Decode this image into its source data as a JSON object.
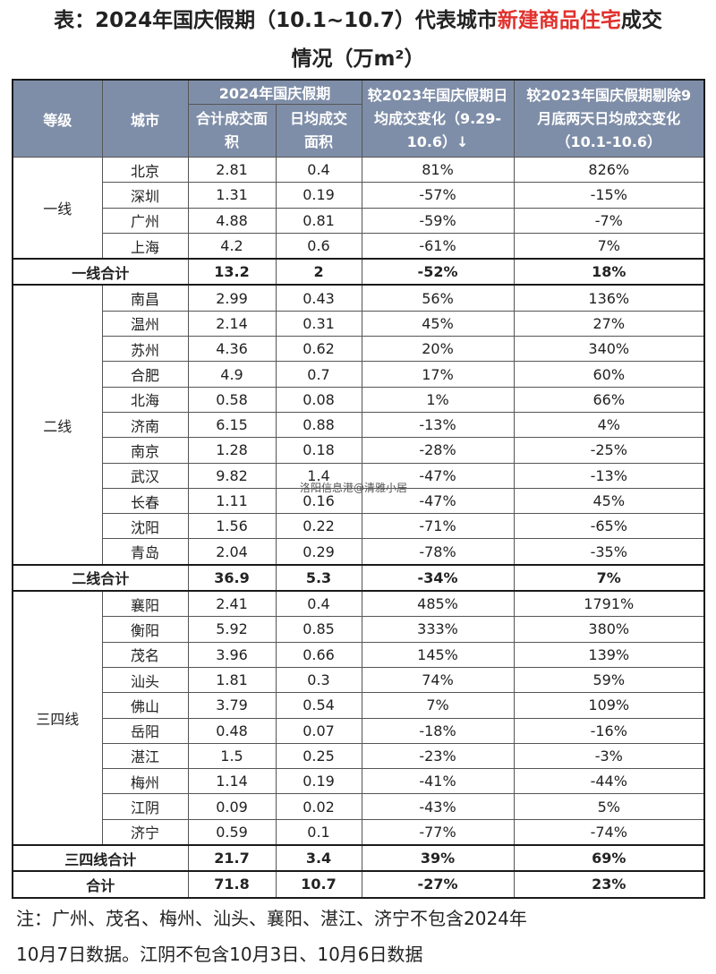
{
  "title": {
    "prefix": "表：2024年国庆假期（10.1~10.7）代表城市",
    "highlight": "新建商品住宅",
    "suffix": "成交",
    "line2": "情况（万m²）"
  },
  "header": {
    "tier": "等级",
    "city": "城市",
    "group": "2024年国庆假期",
    "total_area": "合计成交面积",
    "daily_area": "日均成交面积",
    "vs2023": "较2023年国庆假期日均成交变化（9.29-10.6）↓",
    "vs_sep": "较2023年国庆假期剔除9月底两天日均成交变化（10.1-10.6）"
  },
  "groups": [
    {
      "tier": "一线",
      "rows": [
        {
          "city": "北京",
          "total": "2.81",
          "daily": "0.4",
          "chg": "81%",
          "chg2": "826%"
        },
        {
          "city": "深圳",
          "total": "1.31",
          "daily": "0.19",
          "chg": "-57%",
          "chg2": "-15%"
        },
        {
          "city": "广州",
          "total": "4.88",
          "daily": "0.81",
          "chg": "-59%",
          "chg2": "-7%"
        },
        {
          "city": "上海",
          "total": "4.2",
          "daily": "0.6",
          "chg": "-61%",
          "chg2": "7%"
        }
      ],
      "subtotal": {
        "label": "一线合计",
        "total": "13.2",
        "daily": "2",
        "chg": "-52%",
        "chg2": "18%"
      }
    },
    {
      "tier": "二线",
      "rows": [
        {
          "city": "南昌",
          "total": "2.99",
          "daily": "0.43",
          "chg": "56%",
          "chg2": "136%"
        },
        {
          "city": "温州",
          "total": "2.14",
          "daily": "0.31",
          "chg": "45%",
          "chg2": "27%"
        },
        {
          "city": "苏州",
          "total": "4.36",
          "daily": "0.62",
          "chg": "20%",
          "chg2": "340%"
        },
        {
          "city": "合肥",
          "total": "4.9",
          "daily": "0.7",
          "chg": "17%",
          "chg2": "60%"
        },
        {
          "city": "北海",
          "total": "0.58",
          "daily": "0.08",
          "chg": "1%",
          "chg2": "66%"
        },
        {
          "city": "济南",
          "total": "6.15",
          "daily": "0.88",
          "chg": "-13%",
          "chg2": "4%"
        },
        {
          "city": "南京",
          "total": "1.28",
          "daily": "0.18",
          "chg": "-28%",
          "chg2": "-25%"
        },
        {
          "city": "武汉",
          "total": "9.82",
          "daily": "1.4",
          "chg": "-47%",
          "chg2": "-13%"
        },
        {
          "city": "长春",
          "total": "1.11",
          "daily": "0.16",
          "chg": "-47%",
          "chg2": "45%"
        },
        {
          "city": "沈阳",
          "total": "1.56",
          "daily": "0.22",
          "chg": "-71%",
          "chg2": "-65%"
        },
        {
          "city": "青岛",
          "total": "2.04",
          "daily": "0.29",
          "chg": "-78%",
          "chg2": "-35%"
        }
      ],
      "subtotal": {
        "label": "二线合计",
        "total": "36.9",
        "daily": "5.3",
        "chg": "-34%",
        "chg2": "7%"
      }
    },
    {
      "tier": "三四线",
      "rows": [
        {
          "city": "襄阳",
          "total": "2.41",
          "daily": "0.4",
          "chg": "485%",
          "chg2": "1791%"
        },
        {
          "city": "衡阳",
          "total": "5.92",
          "daily": "0.85",
          "chg": "333%",
          "chg2": "380%"
        },
        {
          "city": "茂名",
          "total": "3.96",
          "daily": "0.66",
          "chg": "145%",
          "chg2": "139%"
        },
        {
          "city": "汕头",
          "total": "1.81",
          "daily": "0.3",
          "chg": "74%",
          "chg2": "59%"
        },
        {
          "city": "佛山",
          "total": "3.79",
          "daily": "0.54",
          "chg": "7%",
          "chg2": "109%"
        },
        {
          "city": "岳阳",
          "total": "0.48",
          "daily": "0.07",
          "chg": "-18%",
          "chg2": "-16%"
        },
        {
          "city": "湛江",
          "total": "1.5",
          "daily": "0.25",
          "chg": "-23%",
          "chg2": "-3%"
        },
        {
          "city": "梅州",
          "total": "1.14",
          "daily": "0.19",
          "chg": "-41%",
          "chg2": "-44%"
        },
        {
          "city": "江阴",
          "total": "0.09",
          "daily": "0.02",
          "chg": "-43%",
          "chg2": "5%"
        },
        {
          "city": "济宁",
          "total": "0.59",
          "daily": "0.1",
          "chg": "-77%",
          "chg2": "-74%"
        }
      ],
      "subtotal": {
        "label": "三四线合计",
        "total": "21.7",
        "daily": "3.4",
        "chg": "39%",
        "chg2": "69%"
      }
    }
  ],
  "grand_total": {
    "label": "合计",
    "total": "71.8",
    "daily": "10.7",
    "chg": "-27%",
    "chg2": "23%"
  },
  "watermark": "洛阳信息港@清雅小居",
  "note_line1": "注：广州、茂名、梅州、汕头、襄阳、湛江、济宁不包含2024年",
  "note_line2": "10月7日数据。江阴不包含10月3日、10月6日数据"
}
